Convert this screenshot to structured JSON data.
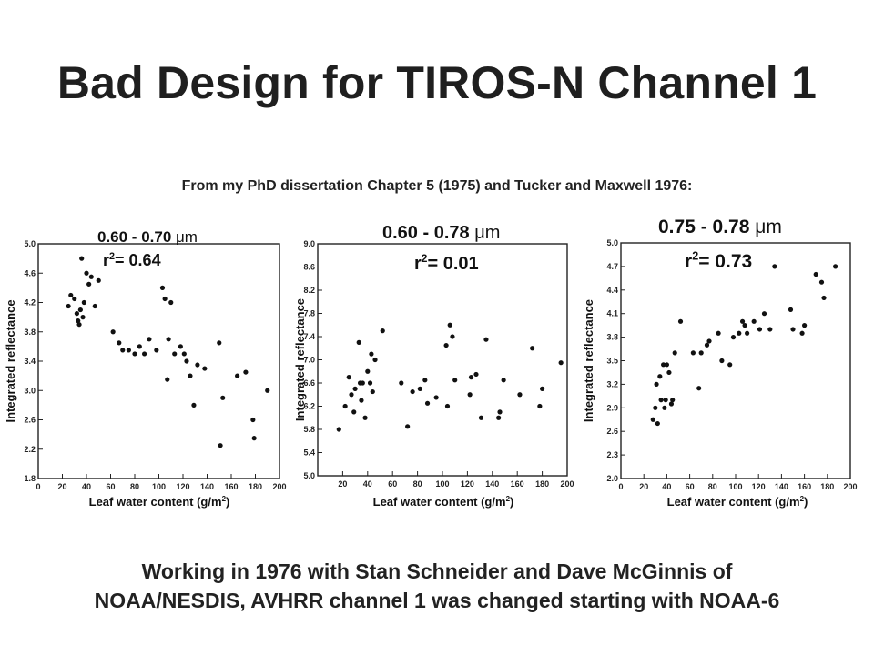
{
  "slide": {
    "title": "Bad Design for TIROS-N Channel 1",
    "subtitle": "From my PhD dissertation Chapter 5 (1975) and Tucker and Maxwell 1976:",
    "footer_line1": "Working in 1976  with Stan Schneider and Dave McGinnis of",
    "footer_line2": "NOAA/NESDIS, AVHRR channel 1 was changed starting with NOAA-6"
  },
  "chart_data": [
    {
      "type": "scatter",
      "band": "0.60 - 0.70",
      "band_unit": "μm",
      "r2_label": "r",
      "r2_exp": "2",
      "r2_value": "= 0.64",
      "xlabel": "Leaf water content (g/m",
      "xlabel_exp": "2",
      "xlabel_end": ")",
      "ylabel": "Integrated reflectance",
      "xlim": [
        0,
        200
      ],
      "ylim": [
        1.8,
        5.0
      ],
      "xticks": [
        "0",
        "20",
        "40",
        "60",
        "80",
        "100",
        "120",
        "140",
        "160",
        "180",
        "200"
      ],
      "yticks": [
        "5.0",
        "4.6",
        "4.2",
        "3.8",
        "3.4",
        "3.0",
        "2.6",
        "2.2",
        "1.8"
      ],
      "points": [
        [
          25,
          4.15
        ],
        [
          27,
          4.3
        ],
        [
          30,
          4.25
        ],
        [
          32,
          4.05
        ],
        [
          33,
          3.95
        ],
        [
          34,
          3.9
        ],
        [
          35,
          4.1
        ],
        [
          36,
          4.8
        ],
        [
          37,
          4.0
        ],
        [
          38,
          4.2
        ],
        [
          40,
          4.6
        ],
        [
          42,
          4.45
        ],
        [
          44,
          4.55
        ],
        [
          47,
          4.15
        ],
        [
          50,
          4.5
        ],
        [
          62,
          3.8
        ],
        [
          67,
          3.65
        ],
        [
          70,
          3.55
        ],
        [
          75,
          3.55
        ],
        [
          80,
          3.5
        ],
        [
          84,
          3.6
        ],
        [
          88,
          3.5
        ],
        [
          92,
          3.7
        ],
        [
          98,
          3.55
        ],
        [
          103,
          4.4
        ],
        [
          105,
          4.25
        ],
        [
          107,
          3.15
        ],
        [
          108,
          3.7
        ],
        [
          110,
          4.2
        ],
        [
          113,
          3.5
        ],
        [
          118,
          3.6
        ],
        [
          121,
          3.5
        ],
        [
          123,
          3.4
        ],
        [
          126,
          3.2
        ],
        [
          129,
          2.8
        ],
        [
          132,
          3.35
        ],
        [
          138,
          3.3
        ],
        [
          150,
          3.65
        ],
        [
          151,
          2.25
        ],
        [
          153,
          2.9
        ],
        [
          165,
          3.2
        ],
        [
          172,
          3.25
        ],
        [
          178,
          2.6
        ],
        [
          179,
          2.35
        ],
        [
          190,
          3.0
        ]
      ]
    },
    {
      "type": "scatter",
      "band": "0.60 - 0.78",
      "band_unit": "μm",
      "r2_label": "r",
      "r2_exp": "2",
      "r2_value": "= 0.01",
      "xlabel": "Leaf water content (g/m",
      "xlabel_exp": "2",
      "xlabel_end": ")",
      "ylabel": "Integrated reflectance",
      "xlim": [
        0,
        200
      ],
      "ylim": [
        5.0,
        9.0
      ],
      "xticks": [
        "20",
        "40",
        "60",
        "80",
        "100",
        "120",
        "140",
        "160",
        "180",
        "200"
      ],
      "yticks": [
        "9.0",
        "8.6",
        "8.2",
        "7.8",
        "7.4",
        "7.0",
        "6.6",
        "6.2",
        "5.8",
        "5.4",
        "5.0"
      ],
      "points": [
        [
          17,
          5.8
        ],
        [
          22,
          6.2
        ],
        [
          25,
          6.7
        ],
        [
          27,
          6.4
        ],
        [
          29,
          6.1
        ],
        [
          30,
          6.5
        ],
        [
          33,
          7.3
        ],
        [
          34,
          6.6
        ],
        [
          35,
          6.3
        ],
        [
          36,
          6.6
        ],
        [
          38,
          6.0
        ],
        [
          40,
          6.8
        ],
        [
          42,
          6.6
        ],
        [
          43,
          7.1
        ],
        [
          44,
          6.45
        ],
        [
          46,
          7.0
        ],
        [
          52,
          7.5
        ],
        [
          67,
          6.6
        ],
        [
          72,
          5.85
        ],
        [
          76,
          6.45
        ],
        [
          82,
          6.5
        ],
        [
          86,
          6.65
        ],
        [
          88,
          6.25
        ],
        [
          95,
          6.35
        ],
        [
          103,
          7.25
        ],
        [
          104,
          6.2
        ],
        [
          106,
          7.6
        ],
        [
          108,
          7.4
        ],
        [
          110,
          6.65
        ],
        [
          122,
          6.4
        ],
        [
          123,
          6.7
        ],
        [
          127,
          6.75
        ],
        [
          131,
          6.0
        ],
        [
          135,
          7.35
        ],
        [
          145,
          6.0
        ],
        [
          146,
          6.1
        ],
        [
          149,
          6.65
        ],
        [
          162,
          6.4
        ],
        [
          172,
          7.2
        ],
        [
          178,
          6.2
        ],
        [
          180,
          6.5
        ],
        [
          195,
          6.95
        ]
      ]
    },
    {
      "type": "scatter",
      "band": "0.75 - 0.78",
      "band_unit": "μm",
      "r2_label": "r",
      "r2_exp": "2",
      "r2_value": "= 0.73",
      "xlabel": "Leaf water content (g/m",
      "xlabel_exp": "2",
      "xlabel_end": ")",
      "ylabel": "Integrated reflectance",
      "xlim": [
        0,
        200
      ],
      "ylim": [
        2.0,
        5.0
      ],
      "xticks": [
        "0",
        "20",
        "40",
        "60",
        "80",
        "100",
        "120",
        "140",
        "160",
        "180",
        "200"
      ],
      "yticks": [
        "5.0",
        "4.7",
        "4.4",
        "4.1",
        "3.8",
        "3.5",
        "3.2",
        "2.9",
        "2.6",
        "2.3",
        "2.0"
      ],
      "points": [
        [
          28,
          2.75
        ],
        [
          30,
          2.9
        ],
        [
          31,
          3.2
        ],
        [
          32,
          2.7
        ],
        [
          34,
          3.3
        ],
        [
          35,
          3.0
        ],
        [
          37,
          3.45
        ],
        [
          38,
          2.9
        ],
        [
          39,
          3.0
        ],
        [
          40,
          3.45
        ],
        [
          42,
          3.35
        ],
        [
          44,
          2.95
        ],
        [
          45,
          3.0
        ],
        [
          47,
          3.6
        ],
        [
          52,
          4.0
        ],
        [
          63,
          3.6
        ],
        [
          68,
          3.15
        ],
        [
          70,
          3.6
        ],
        [
          75,
          3.7
        ],
        [
          77,
          3.75
        ],
        [
          85,
          3.85
        ],
        [
          88,
          3.5
        ],
        [
          95,
          3.45
        ],
        [
          98,
          3.8
        ],
        [
          103,
          3.85
        ],
        [
          106,
          4.0
        ],
        [
          108,
          3.95
        ],
        [
          110,
          3.85
        ],
        [
          116,
          4.0
        ],
        [
          121,
          3.9
        ],
        [
          125,
          4.1
        ],
        [
          130,
          3.9
        ],
        [
          134,
          4.7
        ],
        [
          148,
          4.15
        ],
        [
          150,
          3.9
        ],
        [
          158,
          3.85
        ],
        [
          160,
          3.95
        ],
        [
          170,
          4.6
        ],
        [
          175,
          4.5
        ],
        [
          177,
          4.3
        ],
        [
          187,
          4.7
        ]
      ]
    }
  ]
}
